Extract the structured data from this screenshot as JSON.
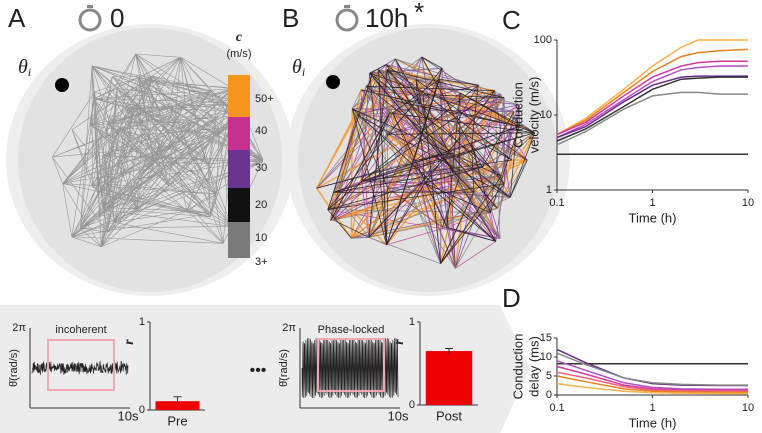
{
  "labels": {
    "a": "A",
    "time_a": "0",
    "b": "B",
    "time_b": "10h",
    "star": "*",
    "theta": "θ",
    "theta_sub": "i",
    "ellipsis": "•••"
  },
  "colorbar": {
    "title": "c",
    "unit": "(m/s)",
    "labels": [
      "50+",
      "40",
      "30",
      "20",
      "10",
      "3+"
    ],
    "colors": [
      "#f7941d",
      "#c8318f",
      "#6a3590",
      "#111111",
      "#7a7a7a"
    ]
  },
  "trace_a": {
    "ylabel_top": "2π",
    "ylabel": "θ̄(rad/s)",
    "xlabel": "10s",
    "box_label": "incoherent"
  },
  "trace_b": {
    "ylabel_top": "2π",
    "ylabel": "θ̄(rad/s)",
    "xlabel": "10s",
    "box_label": "Phase-locked"
  },
  "chart_data": [
    {
      "type": "line",
      "label": "C",
      "xlabel": "Time (h)",
      "ylabel": [
        "Conduction",
        "velocity (m/s)"
      ],
      "xscale": "log",
      "yscale": "log",
      "xlim": [
        0.1,
        10
      ],
      "ylim": [
        1,
        100
      ],
      "xticks": [
        0.1,
        1,
        10
      ],
      "yticks": [
        1,
        10,
        100
      ],
      "x": [
        0.1,
        0.2,
        0.5,
        1,
        2,
        3,
        5,
        10
      ],
      "series": [
        {
          "color": "#f9b14a",
          "values": [
            5.5,
            9,
            22,
            45,
            80,
            100,
            100,
            100
          ]
        },
        {
          "color": "#e8821e",
          "values": [
            5.5,
            8.5,
            20,
            38,
            60,
            68,
            72,
            75
          ]
        },
        {
          "color": "#d63aa0",
          "values": [
            5.5,
            8,
            18,
            32,
            45,
            50,
            52,
            52
          ]
        },
        {
          "color": "#b24fc4",
          "values": [
            5,
            7.5,
            16,
            28,
            40,
            43,
            45,
            45
          ]
        },
        {
          "color": "#6a2a8a",
          "values": [
            5,
            7,
            15,
            25,
            32,
            33,
            33,
            33
          ]
        },
        {
          "color": "#333333",
          "values": [
            4.5,
            6.5,
            13,
            22,
            30,
            31,
            32,
            32
          ]
        },
        {
          "color": "#888888",
          "values": [
            4,
            6,
            12,
            18,
            20,
            20,
            19,
            19
          ]
        },
        {
          "color": "#333333",
          "values": [
            3,
            3,
            3,
            3,
            3,
            3,
            3,
            3
          ]
        }
      ]
    },
    {
      "type": "line",
      "label": "D",
      "xlabel": "Time (h)",
      "ylabel": [
        "Conduction",
        "delay (ms)"
      ],
      "xscale": "log",
      "xlim": [
        0.1,
        10
      ],
      "ylim": [
        0,
        15
      ],
      "xticks": [
        0.1,
        1,
        10
      ],
      "yticks": [
        0,
        5,
        10,
        15
      ],
      "x": [
        0.1,
        0.2,
        0.5,
        1,
        2,
        5,
        10
      ],
      "series": [
        {
          "color": "#333333",
          "values": [
            8.2,
            8.2,
            8.2,
            8.2,
            8.2,
            8.2,
            8.2
          ]
        },
        {
          "color": "#6a2a8a",
          "values": [
            12,
            8.5,
            4.5,
            3,
            2.6,
            2.5,
            2.5
          ]
        },
        {
          "color": "#888888",
          "values": [
            11,
            8,
            4.5,
            3.2,
            2.8,
            2.6,
            2.6
          ]
        },
        {
          "color": "#b24fc4",
          "values": [
            9,
            6.5,
            3.2,
            2,
            1.6,
            1.5,
            1.5
          ]
        },
        {
          "color": "#d63aa0",
          "values": [
            7.5,
            5.5,
            2.6,
            1.6,
            1.3,
            1.2,
            1.2
          ]
        },
        {
          "color": "#f06080",
          "values": [
            6,
            4.5,
            2.2,
            1.3,
            1.1,
            1,
            1
          ]
        },
        {
          "color": "#e8821e",
          "values": [
            5,
            3.5,
            1.6,
            1,
            0.8,
            0.7,
            0.7
          ]
        },
        {
          "color": "#f9b14a",
          "values": [
            3,
            2,
            1,
            0.6,
            0.5,
            0.4,
            0.4
          ]
        }
      ]
    },
    {
      "type": "bar",
      "ylabel": "r",
      "categories": [
        "Pre"
      ],
      "values": [
        0.1
      ],
      "errors": [
        0.05
      ],
      "color": "#ee0000",
      "ylim": [
        0,
        1
      ],
      "yticks": [
        0,
        1
      ]
    },
    {
      "type": "bar",
      "ylabel": "r",
      "categories": [
        "Post"
      ],
      "values": [
        0.65
      ],
      "errors": [
        0.03
      ],
      "color": "#ee0000",
      "ylim": [
        0,
        1
      ],
      "yticks": [
        0,
        1
      ]
    }
  ]
}
